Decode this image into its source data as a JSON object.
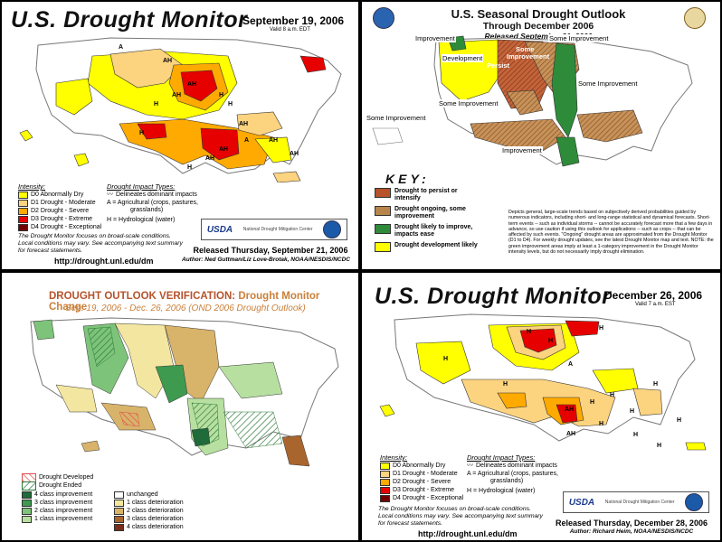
{
  "panel1": {
    "title": "U.S. Drought Monitor",
    "date": "September 19, 2006",
    "valid": "Valid 8 a.m. EDT",
    "map_labels": [
      "A",
      "AH",
      "AH",
      "H",
      "H",
      "AH",
      "H",
      "H",
      "AH",
      "AH",
      "AH",
      "AH",
      "A",
      "H",
      "AH"
    ],
    "intensity_title": "Intensity:",
    "intensity": [
      {
        "label": "D0 Abnormally Dry",
        "color": "#ffff00"
      },
      {
        "label": "D1 Drought - Moderate",
        "color": "#fcd37f"
      },
      {
        "label": "D2 Drought - Severe",
        "color": "#ffaa00"
      },
      {
        "label": "D3 Drought - Extreme",
        "color": "#e60000"
      },
      {
        "label": "D4 Drought - Exceptional",
        "color": "#730000"
      }
    ],
    "impact_title": "Drought Impact Types:",
    "impacts": [
      "Delineates dominant impacts",
      "A = Agricultural (crops, pastures,",
      "grasslands)",
      "H = Hydrological (water)"
    ],
    "note": [
      "The Drought Monitor focuses on broad-scale conditions.",
      "Local conditions may vary. See accompanying text summary",
      "for forecast statements."
    ],
    "logo_usda": "USDA",
    "logo_ndmc": "National Drought Mitigation Center",
    "released": "Released Thursday, September 21, 2006",
    "author": "Author: Ned Guttman/Liz Love-Brotak, NOAA/NESDIS/NCDC",
    "url": "http://drought.unl.edu/dm"
  },
  "panel2": {
    "title": "U.S. Seasonal Drought Outlook",
    "subtitle": "Through December 2006",
    "released": "Released September 21, 2006",
    "map_labels": {
      "improvement": "Improvement",
      "development": "Development",
      "some_improvement_nw": "Some Improvement",
      "persist": "Persist",
      "some": "Some",
      "improvement2": "Improvement",
      "some_improvement_ne": "Some Improvement",
      "some_improvement_mid": "Some Improvement",
      "some_improvement_w": "Some Improvement",
      "improvement_s": "Improvement"
    },
    "key_title": "KEY:",
    "key": [
      {
        "label": "Drought to persist or intensify",
        "color": "#b5532b"
      },
      {
        "label": "Drought ongoing, some improvement",
        "color": "#b8864b"
      },
      {
        "label": "Drought likely to improve, impacts ease",
        "color": "#2e8b3a"
      },
      {
        "label": "Drought development likely",
        "color": "#ffff00"
      }
    ],
    "paragraph": "Depicts general, large-scale trends based on subjectively derived probabilities guided by numerous indicators, including short- and long-range statistical and dynamical forecasts. Short-term events -- such as individual storms -- cannot be accurately forecast more that a few days in advance, so use caution if using this outlook for applications -- such as crops -- that can be affected by such events. \"Ongoing\" drought areas are approximated from the Drought Monitor (D1 to D4). For weekly drought updates, see the latest Drought Monitor map and text. NOTE: the green improvement areas imply at least a 1-category improvement in the Drought Monitor intensity levels, but do not necessarily imply drought elimination."
  },
  "panel3": {
    "title_a": "DROUGHT OUTLOOK VERIFICATION:",
    "title_b": "Drought Monitor Change",
    "subtitle": "Sep. 19, 2006 - Dec. 26, 2006 (OND 2006 Drought Outlook)",
    "hatch_legend": [
      "Drought Developed",
      "Drought Ended"
    ],
    "improve_legend": [
      {
        "label": "4 class improvement",
        "color": "#1f6b3a"
      },
      {
        "label": "3 class improvement",
        "color": "#3d9a4f"
      },
      {
        "label": "2 class improvement",
        "color": "#7dc47a"
      },
      {
        "label": "1 class improvement",
        "color": "#b7e0a0"
      }
    ],
    "deteriorate_legend": [
      {
        "label": "unchanged",
        "color": "#ffffff"
      },
      {
        "label": "1 class deterioration",
        "color": "#f3e6a0"
      },
      {
        "label": "2 class deterioration",
        "color": "#d8b36a"
      },
      {
        "label": "3 class deterioration",
        "color": "#a8652e"
      },
      {
        "label": "4 class deterioration",
        "color": "#7a2d1a"
      }
    ]
  },
  "panel4": {
    "title": "U.S. Drought Monitor",
    "date": "December 26, 2006",
    "valid": "Valid 7 a.m. EST",
    "map_labels": [
      "H",
      "H",
      "H",
      "A",
      "H",
      "H",
      "AH",
      "H",
      "H",
      "H",
      "H",
      "AH",
      "H",
      "H",
      "H",
      "H"
    ],
    "intensity_title": "Intensity:",
    "intensity": [
      {
        "label": "D0 Abnormally Dry",
        "color": "#ffff00"
      },
      {
        "label": "D1 Drought - Moderate",
        "color": "#fcd37f"
      },
      {
        "label": "D2 Drought - Severe",
        "color": "#ffaa00"
      },
      {
        "label": "D3 Drought - Extreme",
        "color": "#e60000"
      },
      {
        "label": "D4 Drought - Exceptional",
        "color": "#730000"
      }
    ],
    "impact_title": "Drought Impact Types:",
    "impacts": [
      "Delineates dominant impacts",
      "A = Agricultural (crops, pastures,",
      "grasslands)",
      "H = Hydrological (water)"
    ],
    "note": [
      "The Drought Monitor focuses on broad-scale conditions.",
      "Local conditions may vary. See accompanying text summary",
      "for forecast statements."
    ],
    "logo_usda": "USDA",
    "logo_ndmc": "National Drought Mitigation Center",
    "released": "Released Thursday, December 28, 2006",
    "author": "Author: Richard Heim, NOAA/NESDIS/NCDC",
    "url": "http://drought.unl.edu/dm"
  }
}
